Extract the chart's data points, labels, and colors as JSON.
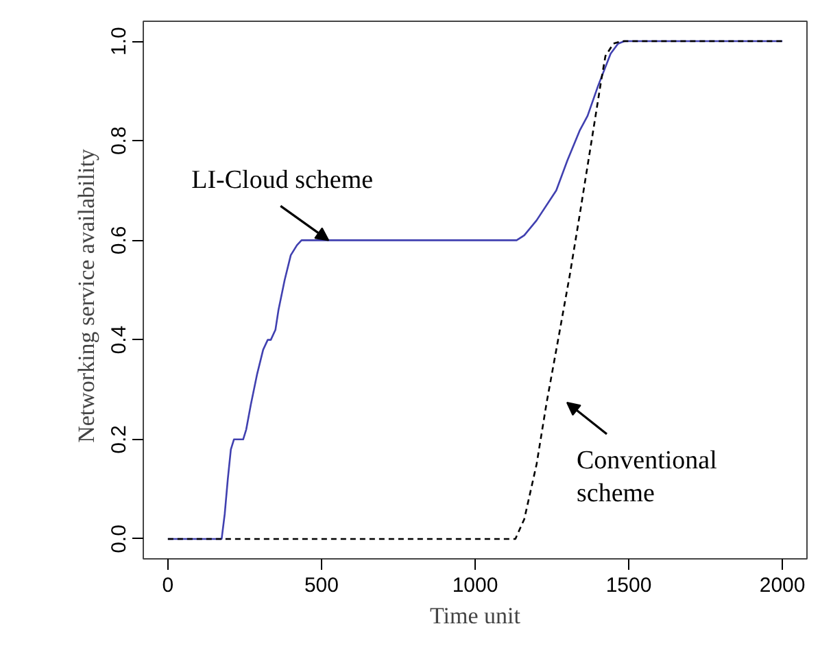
{
  "chart_data": {
    "type": "line",
    "xlabel": "Time unit",
    "ylabel": "Networking service   availability",
    "xlim": [
      -80,
      2080
    ],
    "ylim": [
      -0.04,
      1.04
    ],
    "xticks": [
      0,
      500,
      1000,
      1500,
      2000
    ],
    "yticks": [
      {
        "value": 0,
        "label": "0.0"
      },
      {
        "value": 0.2,
        "label": "0.2"
      },
      {
        "value": 0.4,
        "label": "0.4"
      },
      {
        "value": 0.6,
        "label": "0.6"
      },
      {
        "value": 0.8,
        "label": "0.8"
      },
      {
        "value": 1,
        "label": "1.0"
      }
    ],
    "grid": false,
    "series": [
      {
        "color": "#4040b0",
        "line_style": "solid",
        "x": [
          0,
          175,
          185,
          195,
          205,
          215,
          245,
          255,
          270,
          290,
          310,
          325,
          335,
          350,
          360,
          380,
          400,
          420,
          435,
          445,
          500,
          1000,
          1135,
          1160,
          1200,
          1264,
          1300,
          1340,
          1366,
          1400,
          1441,
          1465,
          1486,
          2000
        ],
        "values": [
          0,
          0,
          0.05,
          0.12,
          0.18,
          0.2,
          0.2,
          0.22,
          0.27,
          0.33,
          0.38,
          0.4,
          0.4,
          0.42,
          0.46,
          0.52,
          0.57,
          0.59,
          0.6,
          0.6,
          0.6,
          0.6,
          0.6,
          0.61,
          0.64,
          0.7,
          0.76,
          0.82,
          0.85,
          0.91,
          0.975,
          0.995,
          1,
          1
        ]
      },
      {
        "color": "#000000",
        "line_style": "dashed",
        "x": [
          0,
          500,
          1000,
          1131,
          1160,
          1200,
          1233,
          1270,
          1308,
          1340,
          1379,
          1410,
          1424,
          1450,
          1477,
          2000
        ],
        "values": [
          0,
          0,
          0,
          0,
          0.04,
          0.15,
          0.275,
          0.4,
          0.53,
          0.65,
          0.8,
          0.92,
          0.97,
          0.995,
          1,
          1
        ]
      }
    ],
    "annotations": [
      {
        "text": "LI-Cloud scheme",
        "x": 523,
        "y": 0.6
      },
      "Conventional\nscheme"
    ]
  }
}
